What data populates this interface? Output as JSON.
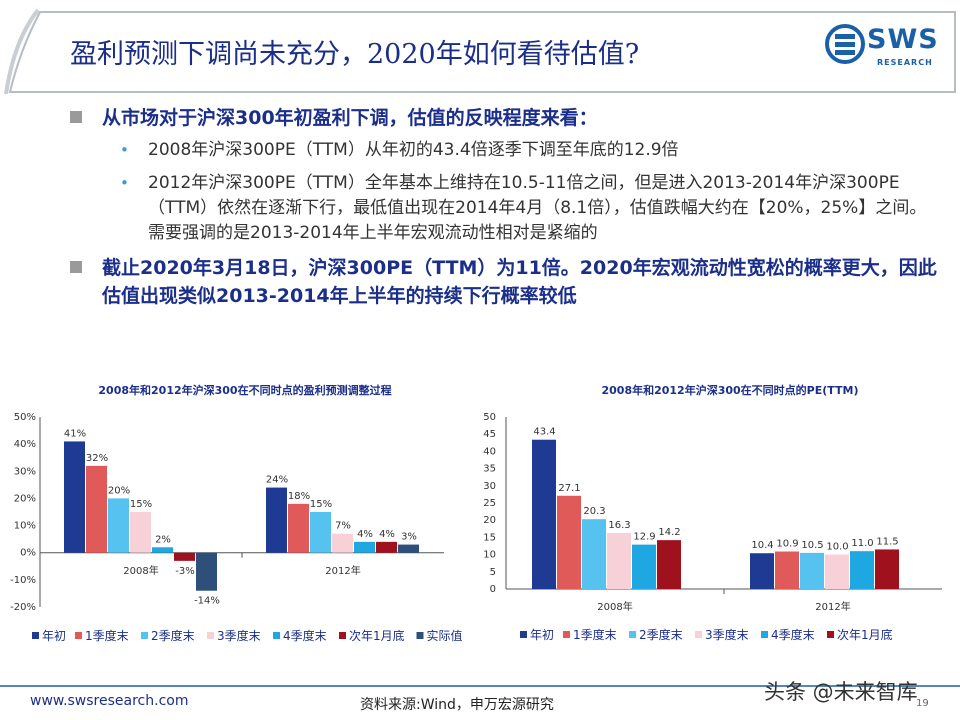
{
  "header": {
    "title": "盈利预测下调尚未充分，2020年如何看待估值?",
    "logo_text": "SWS",
    "logo_sub": "RESEARCH"
  },
  "content": {
    "point1": "从市场对于沪深300年初盈利下调，估值的反映程度来看：",
    "sub1": "2008年沪深300PE（TTM）从年初的43.4倍逐季下调至年底的12.9倍",
    "sub2": "2012年沪深300PE（TTM）全年基本上维持在10.5-11倍之间，但是进入2013-2014年沪深300PE（TTM）依然在逐渐下行，最低值出现在2014年4月（8.1倍），估值跌幅大约在【20%，25%】之间。需要强调的是2013-2014年上半年宏观流动性相对是紧缩的",
    "point2": "截止2020年3月18日，沪深300PE（TTM）为11倍。2020年宏观流动性宽松的概率更大，因此估值出现类似2013-2014年上半年的持续下行概率较低"
  },
  "chart_data": [
    {
      "type": "bar",
      "title": "2008年和2012年沪深300在不同时点的盈利预测调整过程",
      "categories": [
        "2008年",
        "2012年"
      ],
      "series": [
        {
          "name": "年初",
          "values": [
            41,
            24
          ],
          "labels": [
            "41%",
            "24%"
          ],
          "color": "#1f3a93"
        },
        {
          "name": "1季度末",
          "values": [
            32,
            18
          ],
          "labels": [
            "32%",
            "18%"
          ],
          "color": "#e05a5a"
        },
        {
          "name": "2季度末",
          "values": [
            20,
            15
          ],
          "labels": [
            "20%",
            "15%"
          ],
          "color": "#56c2f0"
        },
        {
          "name": "3季度末",
          "values": [
            15,
            7
          ],
          "labels": [
            "15%",
            "7%"
          ],
          "color": "#f8d0d8"
        },
        {
          "name": "4季度末",
          "values": [
            2,
            4
          ],
          "labels": [
            "2%",
            "4%"
          ],
          "color": "#1ea7e0"
        },
        {
          "name": "次年1月底",
          "values": [
            -3,
            4
          ],
          "labels": [
            "-3%",
            "4%"
          ],
          "color": "#a0111e"
        },
        {
          "name": "实际值",
          "values": [
            -14,
            3
          ],
          "labels": [
            "-14%",
            "3%"
          ],
          "color": "#2e4f7a"
        }
      ],
      "ylim": [
        -20,
        50
      ],
      "yticks": [
        "50%",
        "40%",
        "30%",
        "20%",
        "10%",
        "0%",
        "-10%",
        "-20%"
      ],
      "legend": "bottom"
    },
    {
      "type": "bar",
      "title": "2008年和2012年沪深300在不同时点的PE(TTM)",
      "categories": [
        "2008年",
        "2012年"
      ],
      "series": [
        {
          "name": "年初",
          "values": [
            43.4,
            10.4
          ],
          "labels": [
            "43.4",
            "10.4"
          ],
          "color": "#1f3a93"
        },
        {
          "name": "1季度末",
          "values": [
            27.1,
            10.9
          ],
          "labels": [
            "27.1",
            "10.9"
          ],
          "color": "#e05a5a"
        },
        {
          "name": "2季度末",
          "values": [
            20.3,
            10.5
          ],
          "labels": [
            "20.3",
            "10.5"
          ],
          "color": "#56c2f0"
        },
        {
          "name": "3季度末",
          "values": [
            16.3,
            10.0
          ],
          "labels": [
            "16.3",
            "10.0"
          ],
          "color": "#f8d0d8"
        },
        {
          "name": "4季度末",
          "values": [
            12.9,
            11.0
          ],
          "labels": [
            "12.9",
            "11.0"
          ],
          "color": "#1ea7e0"
        },
        {
          "name": "次年1月底",
          "values": [
            14.2,
            11.5
          ],
          "labels": [
            "14.2",
            "11.5"
          ],
          "color": "#a0111e"
        }
      ],
      "ylim": [
        0,
        50
      ],
      "yticks": [
        "50",
        "45",
        "40",
        "35",
        "30",
        "25",
        "20",
        "15",
        "10",
        "5",
        "0"
      ],
      "legend": "bottom"
    }
  ],
  "footer": {
    "url": "www.swsresearch.com",
    "source": "资料来源:Wind，申万宏源研究",
    "page": "19",
    "watermark": "头条 @未来智库"
  }
}
